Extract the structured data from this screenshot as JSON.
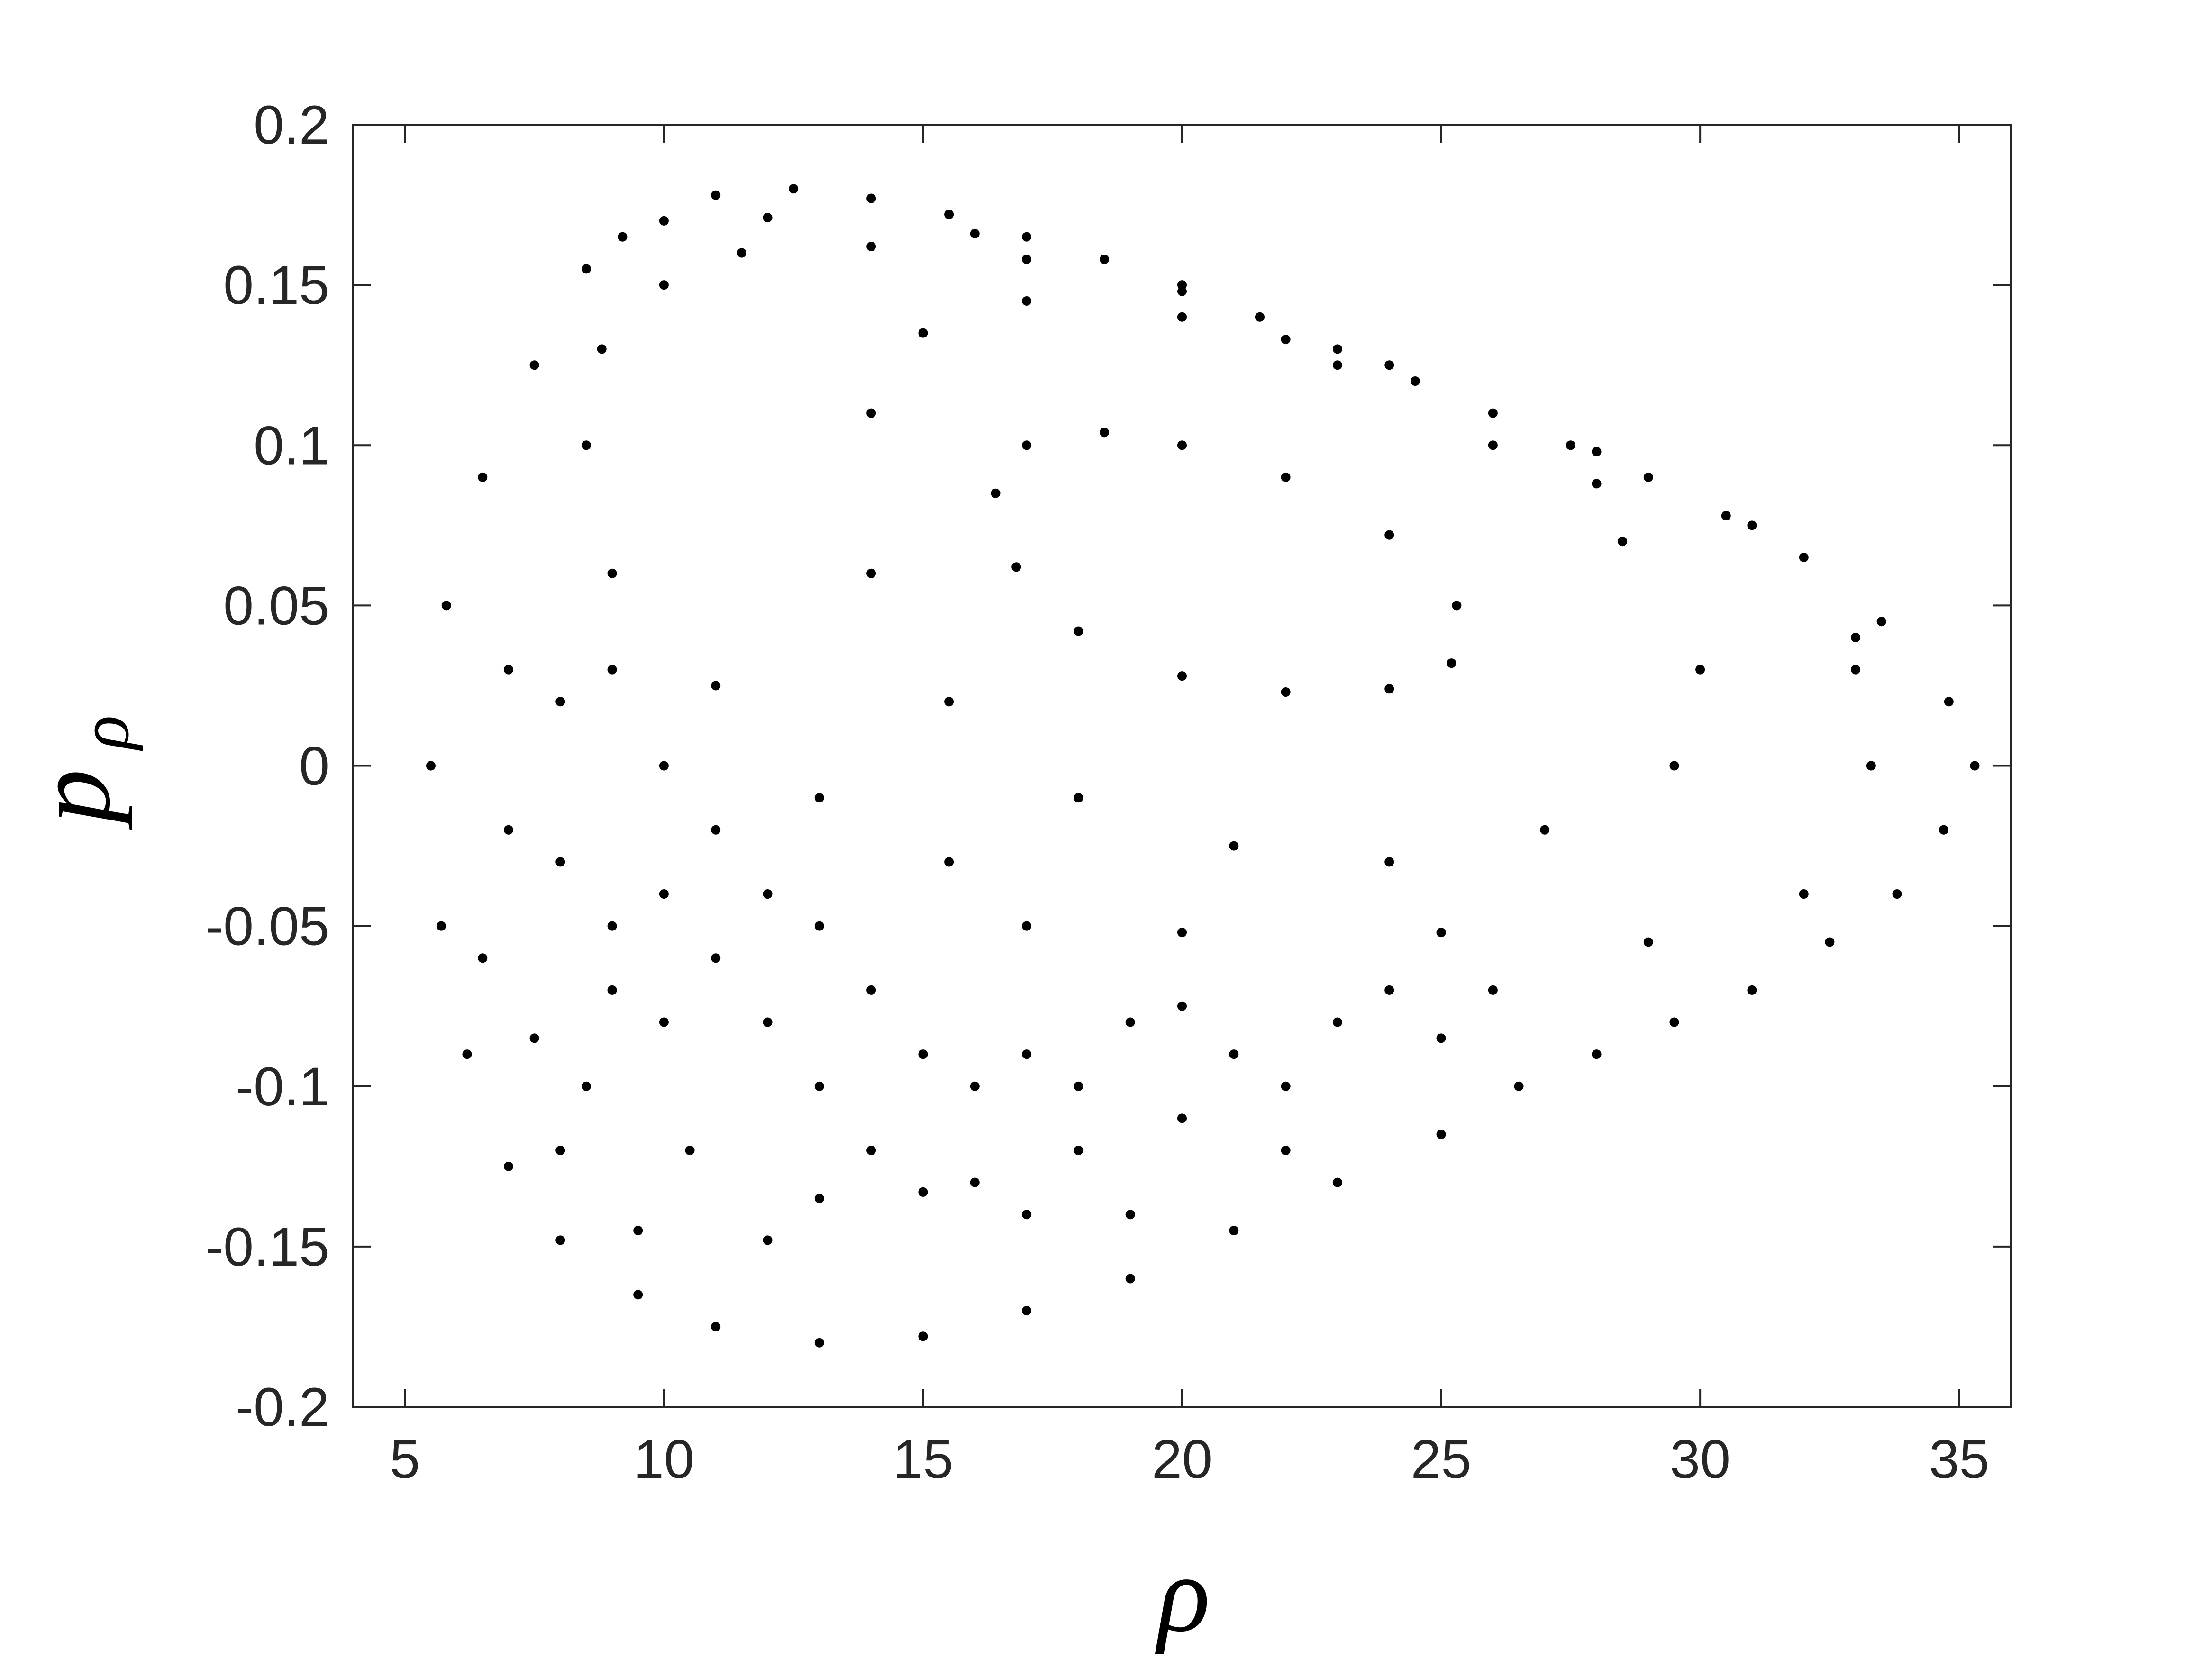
{
  "chart_data": {
    "type": "scatter",
    "xlabel": "ρ",
    "ylabel": "p",
    "ylabel_sub": "ρ",
    "xlim": [
      4,
      36
    ],
    "ylim": [
      -0.2,
      0.2
    ],
    "xticks": [
      5,
      10,
      15,
      20,
      25,
      30,
      35
    ],
    "yticks": [
      -0.2,
      -0.15,
      -0.1,
      -0.05,
      0,
      0.05,
      0.1,
      0.15,
      0.2
    ],
    "box": true,
    "series": [
      {
        "color": "#000000",
        "x": [
          10,
          11,
          12.5,
          14,
          15.5,
          17,
          18.5,
          20,
          21.5,
          23,
          24.5,
          26,
          27.5,
          29,
          30.5,
          32,
          33.5,
          34.8,
          35.3,
          34.7,
          33.8,
          32.5,
          31,
          29.5,
          28,
          26.5,
          25,
          23,
          21,
          19,
          17,
          15,
          13,
          11,
          9.5,
          8,
          7,
          6.2,
          5.7,
          5.5,
          5.8,
          6.5,
          7.5,
          8.5,
          9.2,
          12,
          16,
          22,
          28,
          33,
          7,
          8,
          9,
          10,
          11,
          12,
          13,
          14,
          15,
          16,
          17,
          18,
          19,
          20,
          21,
          22,
          23,
          24,
          25,
          26,
          8,
          9,
          10,
          12,
          13,
          14,
          16,
          18,
          20,
          22,
          11,
          7,
          6.5,
          8.5,
          17,
          19
        ],
        "values": [
          0.17,
          0.178,
          0.18,
          0.177,
          0.172,
          0.165,
          0.158,
          0.15,
          0.14,
          0.13,
          0.12,
          0.11,
          0.1,
          0.09,
          0.078,
          0.065,
          0.045,
          0.02,
          0,
          -0.02,
          -0.04,
          -0.055,
          -0.07,
          -0.08,
          -0.09,
          -0.1,
          -0.115,
          -0.13,
          -0.145,
          -0.16,
          -0.17,
          -0.178,
          -0.18,
          -0.175,
          -0.165,
          -0.148,
          -0.125,
          -0.09,
          -0.05,
          0,
          0.05,
          0.09,
          0.125,
          0.155,
          0.165,
          0.171,
          0.166,
          0.133,
          0.088,
          0.03,
          0.03,
          0.02,
          0.03,
          0,
          -0.02,
          -0.04,
          -0.05,
          -0.07,
          -0.09,
          -0.1,
          -0.09,
          -0.1,
          -0.08,
          -0.075,
          -0.09,
          -0.1,
          -0.08,
          -0.07,
          -0.085,
          -0.07,
          -0.03,
          -0.05,
          -0.04,
          -0.08,
          -0.1,
          -0.12,
          -0.13,
          -0.12,
          -0.11,
          -0.12,
          -0.06,
          -0.02,
          -0.06,
          -0.1,
          -0.14,
          -0.14
        ]
      },
      {
        "color": "#000000",
        "x": [
          16.4,
          17,
          18.5,
          20,
          22,
          24,
          25.3,
          25.2,
          24,
          22,
          20,
          18,
          16.8
        ],
        "values": [
          0.085,
          0.1,
          0.104,
          0.1,
          0.09,
          0.072,
          0.05,
          0.032,
          0.024,
          0.023,
          0.028,
          0.042,
          0.062
        ]
      },
      {
        "color": "#000000",
        "x": [
          14,
          15,
          17,
          20,
          23,
          26,
          28.5,
          30,
          29.5,
          27,
          24,
          21,
          18,
          15.5,
          14
        ],
        "values": [
          0.11,
          0.135,
          0.145,
          0.14,
          0.125,
          0.1,
          0.07,
          0.03,
          0,
          -0.02,
          -0.03,
          -0.025,
          -0.01,
          0.02,
          0.06
        ]
      },
      {
        "color": "#000000",
        "x": [
          10,
          11.5,
          14,
          17,
          20,
          24,
          28,
          31,
          33,
          33.3,
          32,
          29,
          25,
          20,
          17,
          15.5,
          13,
          11,
          9,
          8.5,
          8.8
        ],
        "values": [
          0.15,
          0.16,
          0.162,
          0.158,
          0.148,
          0.125,
          0.098,
          0.075,
          0.04,
          0,
          -0.04,
          -0.055,
          -0.052,
          -0.052,
          -0.05,
          -0.03,
          -0.01,
          0.025,
          0.06,
          0.1,
          0.13
        ]
      },
      {
        "color": "#000000",
        "x": [
          7.5,
          9,
          10,
          10.5,
          13,
          15,
          12,
          9.5,
          8
        ],
        "values": [
          -0.085,
          -0.07,
          -0.08,
          -0.12,
          -0.135,
          -0.133,
          -0.148,
          -0.145,
          -0.12
        ]
      }
    ]
  }
}
